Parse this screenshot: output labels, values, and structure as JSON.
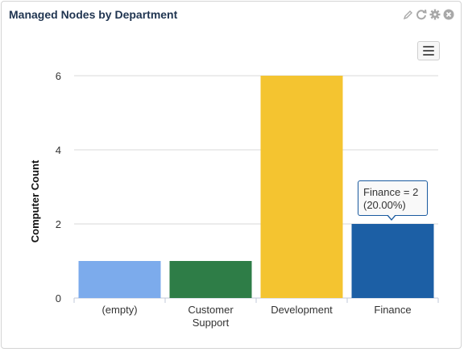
{
  "widget": {
    "title": "Managed Nodes by Department",
    "tools": [
      "pencil-icon",
      "refresh-icon",
      "gear-icon",
      "close-icon"
    ]
  },
  "menu": {
    "icon": "hamburger-menu-icon"
  },
  "tooltip": {
    "line1": "Finance = 2",
    "line2": "(20.00%)"
  },
  "colors": {
    "grid": "#d9d9d9",
    "axis": "#c0c8d8",
    "tooltip_border": "#1a5a9f"
  },
  "chart_data": {
    "type": "bar",
    "categories": [
      [
        "(empty)"
      ],
      [
        "Customer",
        "Support"
      ],
      [
        "Development"
      ],
      [
        "Finance"
      ]
    ],
    "values": [
      1,
      1,
      6,
      2
    ],
    "colors": [
      "#7cabec",
      "#2e7d47",
      "#f4c430",
      "#1c5fa5"
    ],
    "yticks": [
      "0",
      "2",
      "4",
      "6"
    ],
    "ylabel": "Computer Count",
    "xlabel": "",
    "ylim": [
      0,
      6
    ],
    "grid": true,
    "legend": "none"
  }
}
